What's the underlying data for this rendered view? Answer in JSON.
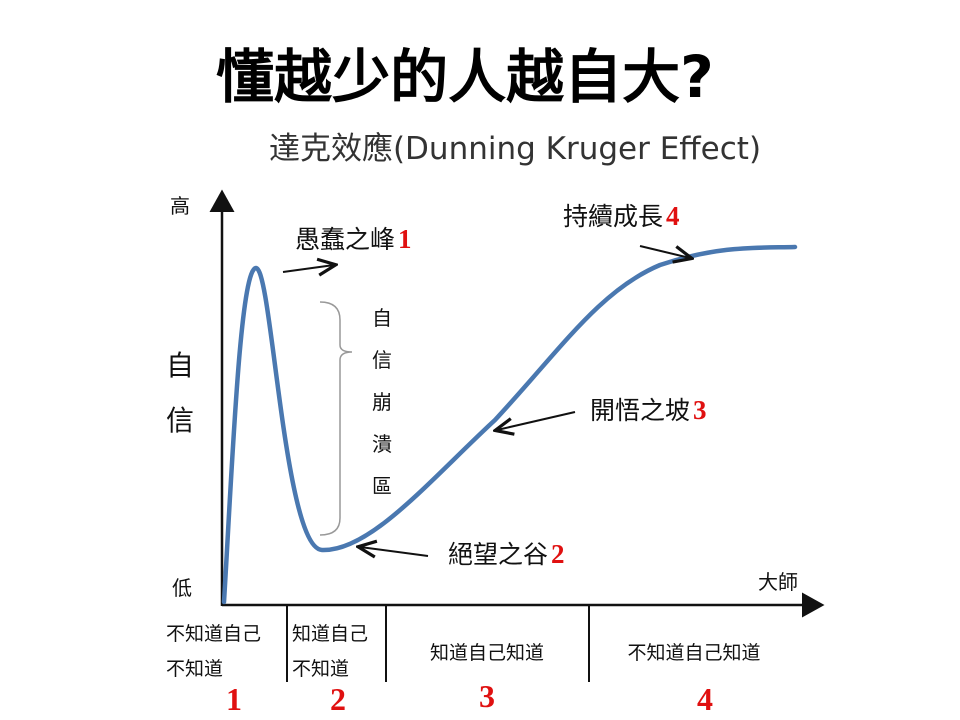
{
  "title": "懂越少的人越自大?",
  "subtitle": "達克效應(Dunning Kruger Effect)",
  "axes": {
    "y_high": "高",
    "y_low": "低",
    "y_label_1": "自",
    "y_label_2": "信",
    "x_end": "大師"
  },
  "collapse_zone": [
    "自",
    "信",
    "崩",
    "潰",
    "區"
  ],
  "annotations": {
    "peak": {
      "text": "愚蠢之峰",
      "num": "1"
    },
    "valley": {
      "text": "絕望之谷",
      "num": "2"
    },
    "slope": {
      "text": "開悟之坡",
      "num": "3"
    },
    "plateau": {
      "text": "持續成長",
      "num": "4"
    }
  },
  "stages": [
    {
      "line1": "不知道自己",
      "line2": "不知道",
      "num": "1"
    },
    {
      "line1": "知道自己",
      "line2": "不知道",
      "num": "2"
    },
    {
      "line1": "知道自己知道",
      "num": "3"
    },
    {
      "line1": "不知道自己知道",
      "num": "4"
    }
  ],
  "colors": {
    "curve": "#4a78b0",
    "number": "#e01010"
  }
}
